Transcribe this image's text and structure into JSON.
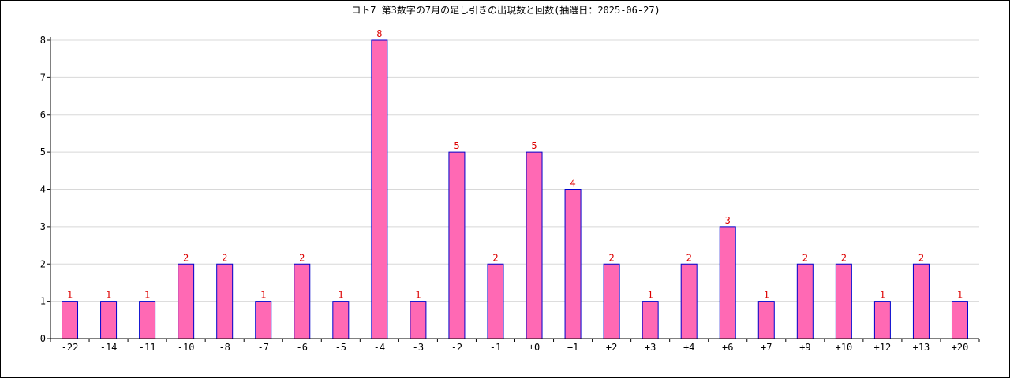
{
  "chart_data": {
    "type": "bar",
    "title": "ロト7 第3数字の7月の足し引きの出現数と回数(抽選日：2025-06-27)",
    "categories": [
      "-22",
      "-14",
      "-11",
      "-10",
      "-8",
      "-7",
      "-6",
      "-5",
      "-4",
      "-3",
      "-2",
      "-1",
      "±0",
      "+1",
      "+2",
      "+3",
      "+4",
      "+6",
      "+7",
      "+9",
      "+10",
      "+12",
      "+13",
      "+20"
    ],
    "values": [
      1,
      1,
      1,
      2,
      2,
      1,
      2,
      1,
      8,
      1,
      5,
      2,
      5,
      4,
      2,
      1,
      2,
      3,
      1,
      2,
      2,
      1,
      2,
      1
    ],
    "y_ticks": [
      0,
      1,
      2,
      3,
      4,
      5,
      6,
      7,
      8
    ],
    "ylim": [
      0,
      8
    ],
    "xlabel": "",
    "ylabel": "",
    "grid": true,
    "colors": {
      "bar_fill": "#ff69b4",
      "bar_stroke": "#0000cc",
      "value_label": "#dd0000",
      "grid": "#d8d8d8",
      "axis": "#000000"
    }
  }
}
